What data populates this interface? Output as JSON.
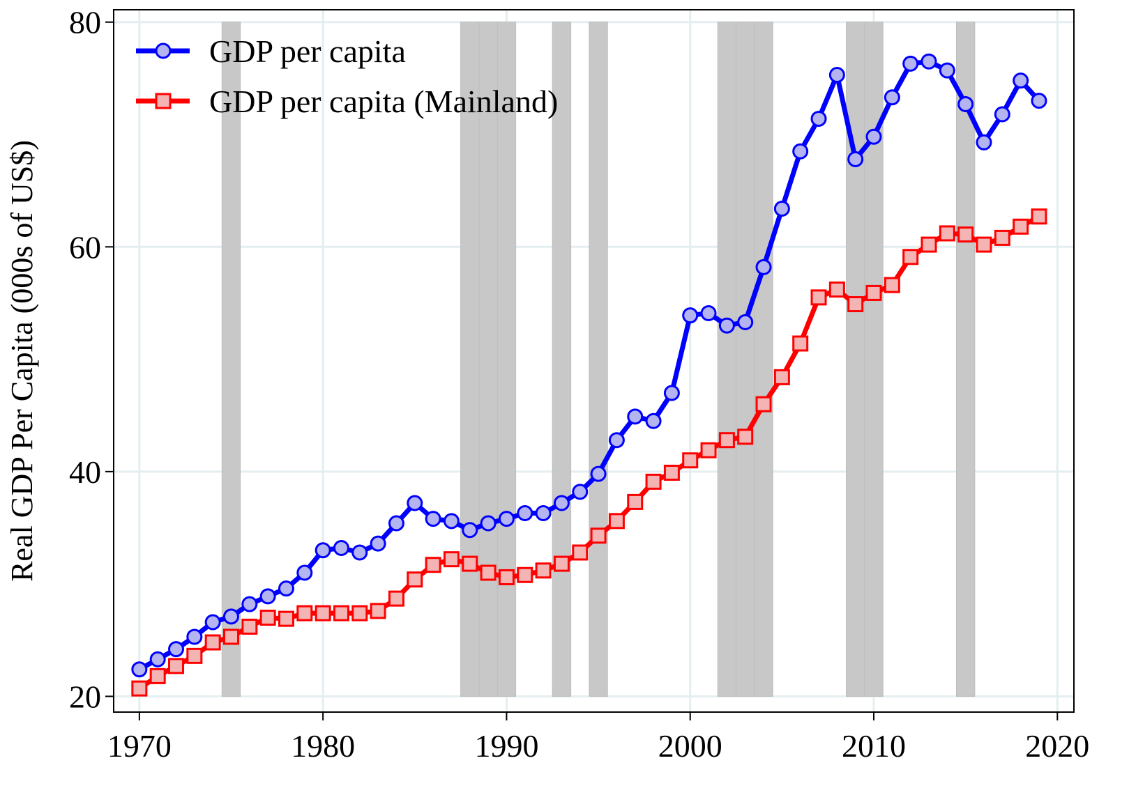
{
  "chart_data": {
    "type": "line",
    "title": "",
    "xlabel": "",
    "ylabel": "Real GDP Per Capita (000s of US$)",
    "xlim": [
      1968.6,
      2020.9
    ],
    "ylim": [
      18.6,
      81.1
    ],
    "xticks": [
      1970,
      1980,
      1990,
      2000,
      2010,
      2020
    ],
    "yticks": [
      20,
      40,
      60,
      80
    ],
    "grid": true,
    "legend": "top-left",
    "x": [
      1970,
      1971,
      1972,
      1973,
      1974,
      1975,
      1976,
      1977,
      1978,
      1979,
      1980,
      1981,
      1982,
      1983,
      1984,
      1985,
      1986,
      1987,
      1988,
      1989,
      1990,
      1991,
      1992,
      1993,
      1994,
      1995,
      1996,
      1997,
      1998,
      1999,
      2000,
      2001,
      2002,
      2003,
      2004,
      2005,
      2006,
      2007,
      2008,
      2009,
      2010,
      2011,
      2012,
      2013,
      2014,
      2015,
      2016,
      2017,
      2018,
      2019
    ],
    "series": [
      {
        "name": "GDP per capita",
        "color": "#0000ff",
        "marker_fill": "#b4b4f0",
        "marker": "circle",
        "values": [
          22.4,
          23.3,
          24.2,
          25.3,
          26.6,
          27.1,
          28.2,
          28.9,
          29.6,
          31.0,
          33.0,
          33.2,
          32.8,
          33.6,
          35.4,
          37.2,
          35.8,
          35.6,
          34.8,
          35.4,
          35.8,
          36.3,
          36.3,
          37.2,
          38.2,
          39.8,
          42.8,
          44.9,
          44.5,
          47.0,
          53.9,
          54.1,
          53.0,
          53.3,
          58.2,
          63.4,
          68.5,
          71.4,
          75.3,
          67.8,
          69.8,
          73.3,
          76.3,
          76.5,
          75.7,
          72.7,
          69.3,
          71.8,
          74.8,
          73.0
        ]
      },
      {
        "name": "GDP per capita (Mainland)",
        "color": "#ff0000",
        "marker_fill": "#f5b4b4",
        "marker": "square",
        "values": [
          20.7,
          21.8,
          22.7,
          23.6,
          24.8,
          25.3,
          26.2,
          27.0,
          26.9,
          27.4,
          27.4,
          27.4,
          27.4,
          27.6,
          28.7,
          30.4,
          31.7,
          32.2,
          31.8,
          31.0,
          30.6,
          30.8,
          31.2,
          31.8,
          32.8,
          34.3,
          35.6,
          37.3,
          39.1,
          39.9,
          41.0,
          41.9,
          42.8,
          43.1,
          46.0,
          48.4,
          51.4,
          55.5,
          56.2,
          54.9,
          55.9,
          56.6,
          59.1,
          60.2,
          61.2,
          61.1,
          60.2,
          60.8,
          61.8,
          62.7
        ]
      }
    ],
    "shaded_years": [
      1975,
      1988,
      1989,
      1990,
      1993,
      1995,
      2002,
      2003,
      2004,
      2009,
      2010,
      2015
    ],
    "shade_color": "#c8c8c8",
    "grid_color": "#e4eef0"
  }
}
